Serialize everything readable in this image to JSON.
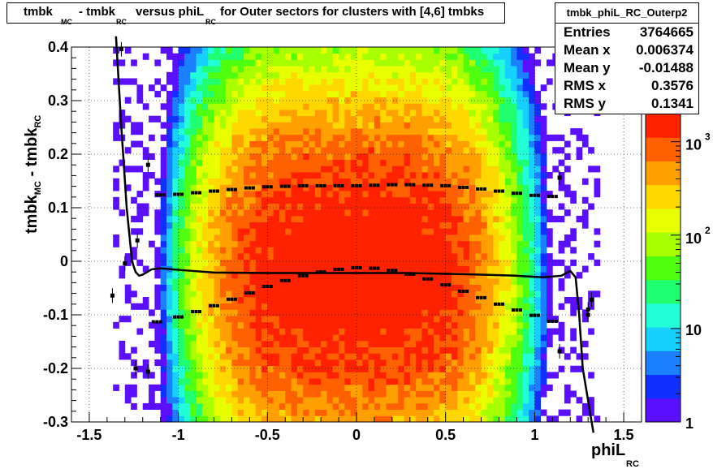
{
  "title": {
    "part1": "tmbk",
    "sub1": "MC",
    "part2": "- tmbk",
    "sub2": "RC",
    "part3": "versus phiL",
    "sub3": "RC",
    "part4": "for Outer sectors for clusters with [4,6] tmbks"
  },
  "stats": {
    "name": "tmbk_phiL_RC_Outerp2",
    "rows": [
      {
        "label": "Entries",
        "value": "3764665"
      },
      {
        "label": "Mean x",
        "value": "0.006374"
      },
      {
        "label": "Mean y",
        "value": "-0.01488"
      },
      {
        "label": "RMS x",
        "value": "0.3576"
      },
      {
        "label": "RMS y",
        "value": "0.1341"
      }
    ]
  },
  "axes": {
    "xlabel": "phiL",
    "xlabel_sub": "RC",
    "ylabel": "tmbk",
    "ylabel_sub1": "MC",
    "ylabel_mid": "- tmbk",
    "ylabel_sub2": "RC"
  },
  "colors": {
    "palette": [
      "#5a10ff",
      "#1030ff",
      "#1a80ff",
      "#16d0ff",
      "#22ffd8",
      "#20ff70",
      "#50ff10",
      "#a8ff00",
      "#e8ff00",
      "#ffd800",
      "#ffa000",
      "#ff6000",
      "#ff2200"
    ],
    "points": "#000000",
    "grid": "#000000"
  },
  "chart_data": {
    "type": "heatmap",
    "xlim": [
      -1.6,
      1.6
    ],
    "ylim": [
      -0.3,
      0.4
    ],
    "zscale": "log",
    "zlim": [
      1,
      2000
    ],
    "grid": true,
    "x_ticks": [
      "-1.5",
      "-1",
      "-0.5",
      "0",
      "0.5",
      "1",
      "1.5"
    ],
    "y_ticks": [
      "-0.3",
      "-0.2",
      "-0.1",
      "0",
      "0.1",
      "0.2",
      "0.3",
      "0.4"
    ],
    "z_ticks": [
      "1",
      "10",
      "10^2",
      "10^3"
    ],
    "density_model": {
      "x_center": -0.02,
      "x_sigma": 0.36,
      "y_center": -0.02,
      "y_sigma": 0.13,
      "phi_edge": 1.3
    },
    "series": [
      {
        "type": "profile-markers",
        "x": [
          -1.1,
          -1.0,
          -0.9,
          -0.8,
          -0.7,
          -0.6,
          -0.5,
          -0.4,
          -0.3,
          -0.2,
          -0.1,
          0.0,
          0.1,
          0.2,
          0.3,
          0.4,
          0.5,
          0.6,
          0.7,
          0.8,
          0.9,
          1.0,
          1.1
        ],
        "y": [
          0.124,
          0.125,
          0.128,
          0.131,
          0.134,
          0.137,
          0.139,
          0.14,
          0.141,
          0.141,
          0.141,
          0.141,
          0.142,
          0.143,
          0.143,
          0.142,
          0.141,
          0.138,
          0.135,
          0.131,
          0.127,
          0.123,
          0.121
        ]
      },
      {
        "type": "profile-markers",
        "x": [
          -1.12,
          -1.0,
          -0.9,
          -0.8,
          -0.7,
          -0.6,
          -0.5,
          -0.4,
          -0.3,
          -0.2,
          -0.1,
          0.0,
          0.1,
          0.2,
          0.3,
          0.4,
          0.5,
          0.6,
          0.7,
          0.8,
          0.9,
          1.0,
          1.1
        ],
        "y": [
          -0.113,
          -0.104,
          -0.094,
          -0.083,
          -0.071,
          -0.059,
          -0.047,
          -0.036,
          -0.027,
          -0.02,
          -0.015,
          -0.012,
          -0.013,
          -0.017,
          -0.024,
          -0.033,
          -0.044,
          -0.056,
          -0.068,
          -0.08,
          -0.091,
          -0.101,
          -0.112
        ]
      },
      {
        "type": "outlier-markers",
        "x": [
          -1.37,
          -1.32,
          -1.3,
          -1.24,
          -1.17,
          -1.23,
          -1.17,
          1.14,
          1.14,
          1.32,
          1.3,
          1.3
        ],
        "y": [
          -0.064,
          0.396,
          -0.004,
          -0.2,
          0.18,
          0.039,
          -0.206,
          0.156,
          -0.168,
          -0.072,
          -0.09,
          -0.1
        ]
      },
      {
        "type": "fit-line",
        "x": [
          -1.35,
          -1.32,
          -1.29,
          -1.26,
          -1.24,
          -1.22,
          -1.2,
          -1.15,
          -1.1,
          -1.0,
          -0.8,
          -0.5,
          -0.2,
          0.0,
          0.3,
          0.6,
          0.9,
          1.05,
          1.15,
          1.2,
          1.23,
          1.25,
          1.27,
          1.3,
          1.33
        ],
        "y": [
          0.42,
          0.25,
          0.1,
          0.0,
          -0.02,
          -0.027,
          -0.025,
          -0.015,
          -0.013,
          -0.016,
          -0.021,
          -0.022,
          -0.022,
          -0.022,
          -0.022,
          -0.024,
          -0.027,
          -0.03,
          -0.027,
          -0.018,
          -0.03,
          -0.1,
          -0.2,
          -0.26,
          -0.32
        ]
      }
    ]
  }
}
